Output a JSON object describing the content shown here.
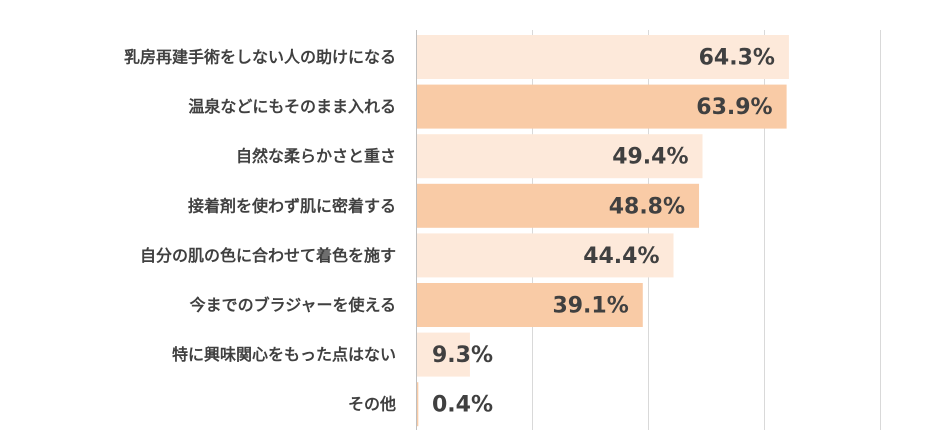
{
  "chart_data": {
    "type": "bar",
    "orientation": "horizontal",
    "categories": [
      "乳房再建手術をしない人の助けになる",
      "温泉などにもそのまま入れる",
      "自然な柔らかさと重さ",
      "接着剤を使わず肌に密着する",
      "自分の肌の色に合わせて着色を施す",
      "今までのブラジャーを使える",
      "特に興味関心をもった点はない",
      "その他"
    ],
    "values": [
      64.3,
      63.9,
      49.4,
      48.8,
      44.4,
      39.1,
      9.3,
      0.4
    ],
    "value_labels": [
      "64.3%",
      "63.9%",
      "49.4%",
      "48.8%",
      "44.4%",
      "39.1%",
      "9.3%",
      "0.4%"
    ],
    "xlim": [
      0,
      80
    ],
    "grid": true,
    "legend": "none",
    "title": "",
    "xlabel": "",
    "ylabel": ""
  },
  "colors": {
    "bar_light": "#fde9da",
    "bar_dark": "#f9cba6",
    "text": "#404040",
    "grid": "#d9d9d9"
  }
}
